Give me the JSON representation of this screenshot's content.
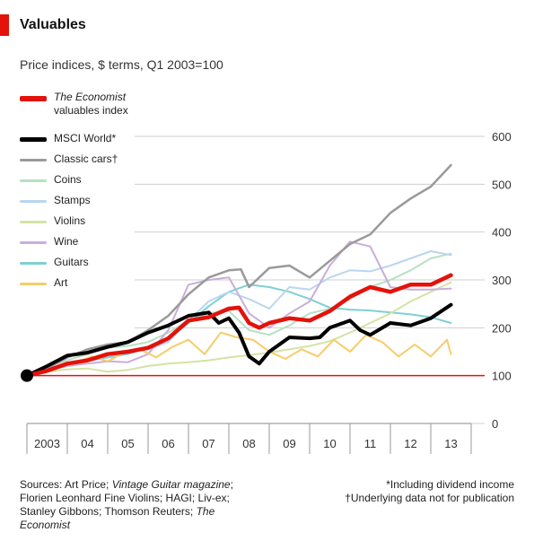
{
  "header": {
    "title": "Valuables",
    "subtitle": "Price indices, $ terms, Q1 2003=100"
  },
  "legend": {
    "economist_part1": "The Economist",
    "economist_part2": "valuables index",
    "msci": "MSCI World*",
    "classic_cars": "Classic cars†",
    "coins": "Coins",
    "stamps": "Stamps",
    "violins": "Violins",
    "wine": "Wine",
    "guitars": "Guitars",
    "art": "Art"
  },
  "footer": {
    "sources_prefix": "Sources: Art Price;",
    "sources_vg": "Vintage Guitar magazine",
    "sources_mid": "; Florien Leonhard Fine Violins; HAGI; Liv-ex; Stanley Gibbons; Thomson Reuters;",
    "sources_economist": "The Economist",
    "note1": "*Including dividend income",
    "note2": "†Underlying data not for publication"
  },
  "chart_data": {
    "type": "line",
    "ylim": [
      0,
      600
    ],
    "yticks": [
      0,
      100,
      200,
      300,
      400,
      500,
      600
    ],
    "xlim": [
      2003.0,
      2014.0
    ],
    "x_tick_labels": [
      "2003",
      "04",
      "05",
      "06",
      "07",
      "08",
      "09",
      "10",
      "11",
      "12",
      "13"
    ],
    "baseline": 100,
    "grid": true,
    "legend_position": "left",
    "series": [
      {
        "key": "guitars",
        "color": "#7fd0d4",
        "width": 2,
        "x": [
          2003.0,
          2003.5,
          2004.0,
          2004.5,
          2005.0,
          2005.5,
          2006.0,
          2006.5,
          2007.0,
          2007.5,
          2008.0,
          2008.5,
          2009.0,
          2009.5,
          2010.0,
          2010.5,
          2011.0,
          2011.5,
          2012.0,
          2012.5,
          2013.0,
          2013.5
        ],
        "y": [
          100,
          110,
          122,
          130,
          138,
          145,
          158,
          175,
          210,
          245,
          275,
          290,
          285,
          275,
          260,
          242,
          238,
          236,
          232,
          228,
          222,
          210
        ]
      },
      {
        "key": "coins",
        "color": "#b7e0c4",
        "width": 2,
        "x": [
          2003.0,
          2003.5,
          2004.0,
          2004.5,
          2005.0,
          2005.5,
          2006.0,
          2006.5,
          2007.0,
          2007.5,
          2008.0,
          2008.5,
          2009.0,
          2009.5,
          2010.0,
          2010.5,
          2011.0,
          2011.5,
          2012.0,
          2012.5,
          2013.0,
          2013.5
        ],
        "y": [
          100,
          118,
          132,
          145,
          158,
          162,
          170,
          190,
          215,
          230,
          235,
          195,
          185,
          205,
          230,
          240,
          260,
          285,
          300,
          320,
          345,
          355
        ]
      },
      {
        "key": "stamps",
        "color": "#b9d6ef",
        "width": 2,
        "x": [
          2003.0,
          2003.5,
          2004.0,
          2004.5,
          2005.0,
          2005.5,
          2006.0,
          2006.5,
          2007.0,
          2007.5,
          2008.0,
          2008.5,
          2009.0,
          2009.5,
          2010.0,
          2010.5,
          2011.0,
          2011.5,
          2012.0,
          2012.5,
          2013.0,
          2013.5
        ],
        "y": [
          100,
          112,
          125,
          135,
          145,
          150,
          155,
          170,
          215,
          255,
          275,
          260,
          240,
          285,
          280,
          305,
          320,
          318,
          330,
          345,
          360,
          352
        ]
      },
      {
        "key": "violins",
        "color": "#d4e3a4",
        "width": 2,
        "x": [
          2003.0,
          2003.5,
          2004.0,
          2004.5,
          2005.0,
          2005.5,
          2006.0,
          2006.5,
          2007.0,
          2007.5,
          2008.0,
          2008.5,
          2009.0,
          2009.5,
          2010.0,
          2010.5,
          2011.0,
          2011.5,
          2012.0,
          2012.5,
          2013.0,
          2013.5
        ],
        "y": [
          100,
          108,
          113,
          115,
          108,
          112,
          120,
          125,
          128,
          132,
          138,
          143,
          148,
          155,
          162,
          172,
          190,
          210,
          230,
          255,
          275,
          295
        ]
      },
      {
        "key": "wine",
        "color": "#c9aedb",
        "width": 2,
        "x": [
          2003.0,
          2003.5,
          2004.0,
          2004.5,
          2005.0,
          2005.5,
          2006.0,
          2006.5,
          2007.0,
          2007.5,
          2008.0,
          2008.5,
          2009.0,
          2009.5,
          2010.0,
          2010.5,
          2011.0,
          2011.5,
          2012.0,
          2012.5,
          2013.0,
          2013.5
        ],
        "y": [
          100,
          110,
          120,
          125,
          130,
          128,
          145,
          195,
          290,
          300,
          305,
          230,
          200,
          230,
          255,
          330,
          380,
          370,
          285,
          280,
          280,
          282
        ]
      },
      {
        "key": "art",
        "color": "#f7cc6a",
        "width": 2,
        "x": [
          2003.0,
          2003.4,
          2003.8,
          2004.2,
          2004.6,
          2005.0,
          2005.4,
          2005.8,
          2006.2,
          2006.6,
          2007.0,
          2007.4,
          2007.8,
          2008.2,
          2008.6,
          2009.0,
          2009.4,
          2009.8,
          2010.2,
          2010.6,
          2011.0,
          2011.4,
          2011.8,
          2012.2,
          2012.6,
          2013.0,
          2013.4,
          2013.5
        ],
        "y": [
          100,
          112,
          120,
          125,
          140,
          130,
          148,
          155,
          138,
          160,
          175,
          145,
          190,
          180,
          175,
          150,
          135,
          155,
          140,
          175,
          150,
          185,
          170,
          140,
          165,
          140,
          175,
          145
        ]
      },
      {
        "key": "classic_cars",
        "color": "#9a9a9a",
        "width": 2.5,
        "x": [
          2003.0,
          2003.5,
          2004.0,
          2004.5,
          2005.0,
          2005.5,
          2006.0,
          2006.5,
          2007.0,
          2007.5,
          2008.0,
          2008.3,
          2008.5,
          2009.0,
          2009.5,
          2010.0,
          2010.5,
          2011.0,
          2011.5,
          2012.0,
          2012.5,
          2013.0,
          2013.5
        ],
        "y": [
          100,
          115,
          138,
          155,
          165,
          170,
          195,
          225,
          270,
          305,
          320,
          322,
          285,
          325,
          330,
          305,
          340,
          375,
          395,
          440,
          470,
          495,
          540
        ]
      },
      {
        "key": "msci",
        "color": "#000000",
        "width": 4,
        "x": [
          2003.0,
          2003.5,
          2004.0,
          2004.5,
          2005.0,
          2005.5,
          2006.0,
          2006.5,
          2007.0,
          2007.5,
          2007.75,
          2008.0,
          2008.25,
          2008.5,
          2008.75,
          2009.0,
          2009.5,
          2010.0,
          2010.25,
          2010.5,
          2011.0,
          2011.25,
          2011.5,
          2012.0,
          2012.5,
          2013.0,
          2013.5
        ],
        "y": [
          100,
          120,
          142,
          148,
          160,
          170,
          190,
          205,
          225,
          232,
          210,
          220,
          190,
          140,
          125,
          150,
          180,
          178,
          180,
          200,
          215,
          195,
          185,
          210,
          205,
          220,
          248
        ]
      },
      {
        "key": "economist",
        "color": "#e3120b",
        "width": 4.5,
        "x": [
          2003.0,
          2003.5,
          2004.0,
          2004.5,
          2005.0,
          2005.5,
          2006.0,
          2006.5,
          2007.0,
          2007.5,
          2008.0,
          2008.25,
          2008.5,
          2008.75,
          2009.0,
          2009.5,
          2010.0,
          2010.5,
          2011.0,
          2011.25,
          2011.5,
          2012.0,
          2012.5,
          2013.0,
          2013.5
        ],
        "y": [
          100,
          110,
          125,
          132,
          145,
          150,
          158,
          178,
          215,
          222,
          240,
          242,
          210,
          200,
          210,
          220,
          215,
          235,
          265,
          275,
          285,
          275,
          290,
          290,
          310
        ]
      }
    ]
  }
}
